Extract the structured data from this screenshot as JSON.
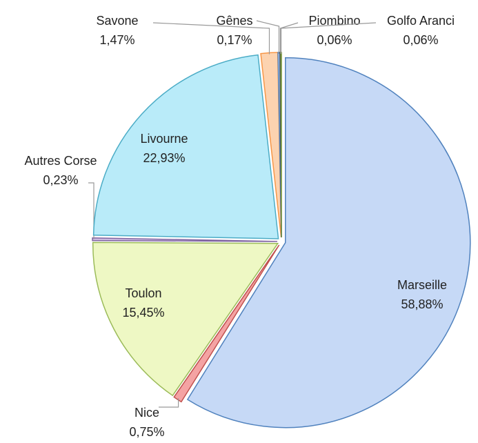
{
  "chart_data": {
    "type": "pie",
    "categories": [
      "Marseille",
      "Nice",
      "Toulon",
      "Autres Corse",
      "Livourne",
      "Savone",
      "Gênes",
      "Piombino",
      "Golfo Aranci"
    ],
    "values": [
      58.88,
      0.75,
      15.45,
      0.23,
      22.93,
      1.47,
      0.17,
      0.06,
      0.06
    ],
    "value_labels": [
      "58,88%",
      "0,75%",
      "15,45%",
      "0,23%",
      "22,93%",
      "1,47%",
      "0,17%",
      "0,06%",
      "0,06%"
    ],
    "colors": [
      "#c6d9f6",
      "#f4a3a3",
      "#eef8c4",
      "#cdbbe0",
      "#b9ebf9",
      "#fcd3b0",
      "#c6d9f6",
      "#2f3f5e",
      "#9bbb59"
    ],
    "edge_colors": [
      "#4f81bd",
      "#c0504d",
      "#9bbb59",
      "#8064a2",
      "#4bacc6",
      "#f79646",
      "#4f81bd",
      "#1f2f4e",
      "#77933c"
    ]
  }
}
